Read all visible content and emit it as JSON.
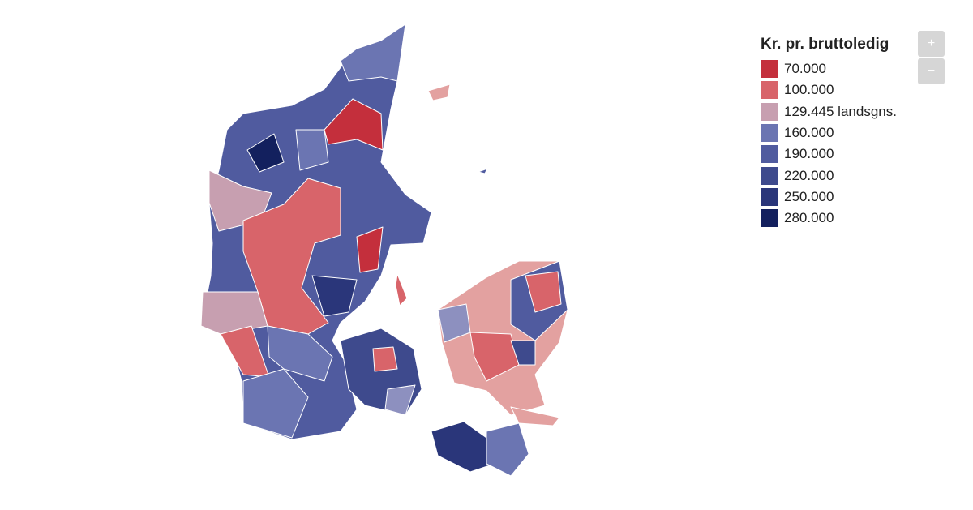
{
  "legend": {
    "title": "Kr. pr. bruttoledig",
    "items": [
      {
        "label": "70.000",
        "color": "#c42f3c"
      },
      {
        "label": "100.000",
        "color": "#d8646a"
      },
      {
        "label": "129.445 landsgns.",
        "color": "#c79fb0"
      },
      {
        "label": "160.000",
        "color": "#6b75b2"
      },
      {
        "label": "190.000",
        "color": "#505b9f"
      },
      {
        "label": "220.000",
        "color": "#3e4a8d"
      },
      {
        "label": "250.000",
        "color": "#2a367a"
      },
      {
        "label": "280.000",
        "color": "#13205e"
      }
    ]
  },
  "zoom": {
    "in": "+",
    "out": "−"
  }
}
